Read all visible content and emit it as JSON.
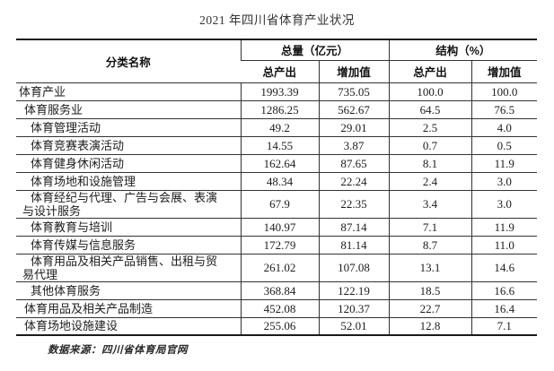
{
  "title": "2021 年四川省体育产业状况",
  "table": {
    "category_header": "分类名称",
    "groups": [
      {
        "label": "总量（亿元）",
        "columns": [
          "总产出",
          "增加值"
        ]
      },
      {
        "label": "结构（%）",
        "columns": [
          "总产出",
          "增加值"
        ]
      }
    ],
    "rows": [
      {
        "label": "体育产业",
        "indent": 0,
        "values": [
          "1993.39",
          "735.05",
          "100.0",
          "100.0"
        ]
      },
      {
        "label": "体育服务业",
        "indent": 1,
        "values": [
          "1286.25",
          "562.67",
          "64.5",
          "76.5"
        ]
      },
      {
        "label": "体育管理活动",
        "indent": 2,
        "values": [
          "49.2",
          "29.01",
          "2.5",
          "4.0"
        ]
      },
      {
        "label": "体育竞赛表演活动",
        "indent": 2,
        "values": [
          "14.55",
          "3.87",
          "0.7",
          "0.5"
        ]
      },
      {
        "label": "体育健身休闲活动",
        "indent": 2,
        "values": [
          "162.64",
          "87.65",
          "8.1",
          "11.9"
        ]
      },
      {
        "label": "体育场地和设施管理",
        "indent": 2,
        "values": [
          "48.34",
          "22.24",
          "2.4",
          "3.0"
        ]
      },
      {
        "label": "体育经纪与代理、广告与会展、表演与设计服务",
        "indent": 2,
        "values": [
          "67.9",
          "22.35",
          "3.4",
          "3.0"
        ]
      },
      {
        "label": "体育教育与培训",
        "indent": 2,
        "values": [
          "140.97",
          "87.14",
          "7.1",
          "11.9"
        ]
      },
      {
        "label": "体育传媒与信息服务",
        "indent": 2,
        "values": [
          "172.79",
          "81.14",
          "8.7",
          "11.0"
        ]
      },
      {
        "label": "体育用品及相关产品销售、出租与贸易代理",
        "indent": 2,
        "values": [
          "261.02",
          "107.08",
          "13.1",
          "14.6"
        ]
      },
      {
        "label": "其他体育服务",
        "indent": 2,
        "values": [
          "368.84",
          "122.19",
          "18.5",
          "16.6"
        ]
      },
      {
        "label": "体育用品及相关产品制造",
        "indent": 1,
        "values": [
          "452.08",
          "120.37",
          "22.7",
          "16.4"
        ]
      },
      {
        "label": "体育场地设施建设",
        "indent": 1,
        "values": [
          "255.06",
          "52.01",
          "12.8",
          "7.1"
        ]
      }
    ]
  },
  "footer": {
    "source": "数据来源：四川省体育局官网"
  }
}
